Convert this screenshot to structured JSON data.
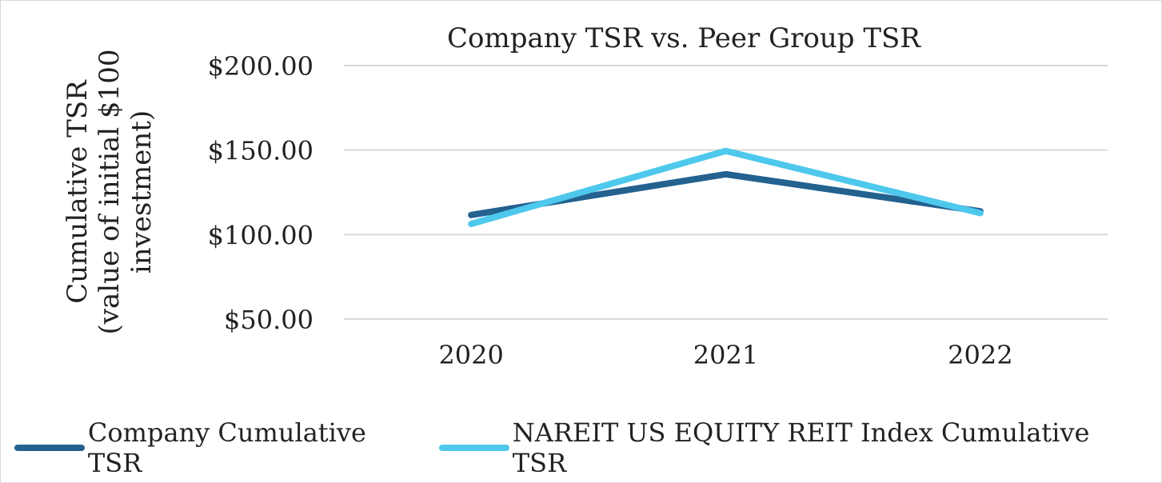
{
  "chart_data": {
    "type": "line",
    "title": "Company TSR vs. Peer Group TSR",
    "ylabel_lines": [
      "Cumulative TSR",
      "(value of initial $100",
      "investment)"
    ],
    "xlabel": "",
    "categories": [
      "2020",
      "2021",
      "2022"
    ],
    "ylim": [
      50,
      200
    ],
    "yticks": [
      50,
      100,
      150,
      200
    ],
    "ytick_labels": [
      "$50.00",
      "$100.00",
      "$150.00",
      "$200.00"
    ],
    "grid": true,
    "legend_position": "bottom",
    "series": [
      {
        "name": "Company Cumulative TSR",
        "color": "#23618f",
        "values": [
          111.6,
          135.7,
          113.8
        ]
      },
      {
        "name": "NAREIT US EQUITY REIT Index Cumulative TSR",
        "color": "#4ec8ec",
        "values": [
          106.3,
          149.5,
          112.7
        ]
      }
    ]
  }
}
